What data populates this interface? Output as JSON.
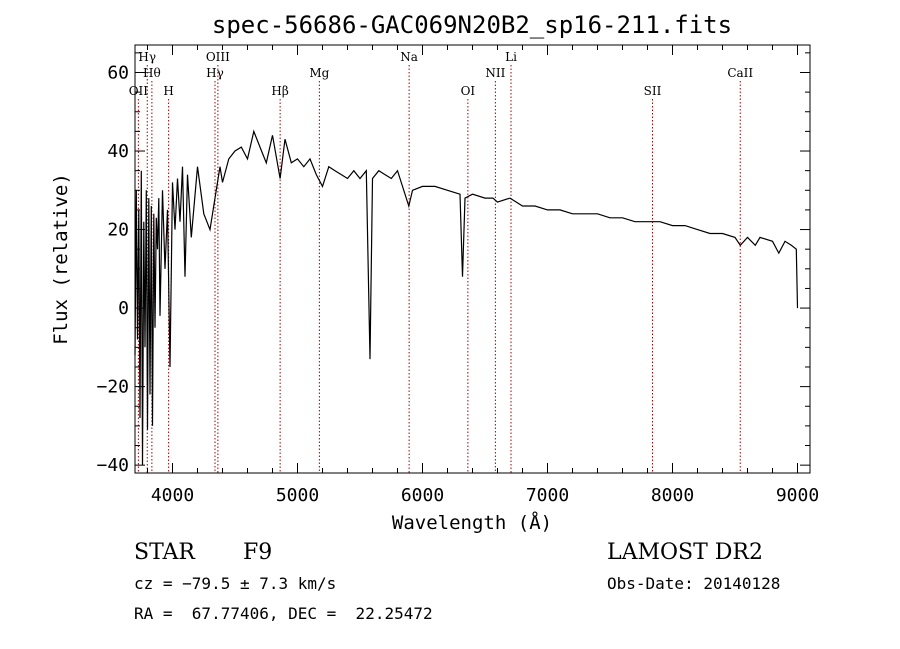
{
  "chart_data": {
    "type": "line",
    "title": "spec-56686-GAC069N20B2_sp16-211.fits",
    "xlabel": "Wavelength (Å)",
    "ylabel": "Flux (relative)",
    "xlim": [
      3700,
      9100
    ],
    "ylim": [
      -42,
      67
    ],
    "xticks": [
      4000,
      5000,
      6000,
      7000,
      8000,
      9000
    ],
    "yticks": [
      -40,
      -20,
      0,
      20,
      40,
      60
    ],
    "grid": false,
    "line_color": "#000000",
    "marker_color": "#aa0000",
    "series": [
      {
        "x": [
          3700,
          3710,
          3720,
          3730,
          3740,
          3750,
          3760,
          3770,
          3780,
          3790,
          3800,
          3810,
          3820,
          3830,
          3840,
          3850,
          3860,
          3870,
          3880,
          3890,
          3900,
          3920,
          3940,
          3960,
          3980,
          4000,
          4020,
          4040,
          4060,
          4080,
          4100,
          4120,
          4150,
          4200,
          4250,
          4300,
          4340,
          4380,
          4400,
          4450,
          4500,
          4550,
          4600,
          4650,
          4700,
          4750,
          4800,
          4861,
          4900,
          4950,
          5000,
          5050,
          5100,
          5150,
          5200,
          5250,
          5300,
          5350,
          5400,
          5450,
          5500,
          5550,
          5580,
          5600,
          5650,
          5700,
          5750,
          5800,
          5890,
          5920,
          6000,
          6100,
          6200,
          6300,
          6320,
          6340,
          6400,
          6500,
          6563,
          6600,
          6700,
          6800,
          6900,
          7000,
          7100,
          7200,
          7300,
          7400,
          7500,
          7600,
          7700,
          7800,
          7900,
          8000,
          8100,
          8200,
          8300,
          8400,
          8500,
          8542,
          8600,
          8662,
          8700,
          8800,
          8850,
          8900,
          8950,
          8990,
          9000
        ],
        "y": [
          -12,
          30,
          -8,
          25,
          -28,
          35,
          -40,
          22,
          -10,
          30,
          -31,
          28,
          -22,
          26,
          -30,
          24,
          -5,
          23,
          15,
          28,
          -2,
          30,
          10,
          25,
          -15,
          32,
          20,
          33,
          22,
          36,
          8,
          34,
          18,
          36,
          24,
          20,
          28,
          36,
          32,
          38,
          40,
          41,
          38,
          45,
          41,
          37,
          44,
          33,
          43,
          37,
          38,
          36,
          38,
          34,
          31,
          36,
          35,
          34,
          33,
          35,
          33,
          35,
          -13,
          33,
          35,
          34,
          33,
          35,
          26,
          30,
          31,
          31,
          30,
          29,
          8,
          28,
          29,
          28,
          28,
          27,
          28,
          26,
          26,
          25,
          25,
          24,
          24,
          24,
          23,
          23,
          22,
          22,
          22,
          21,
          21,
          20,
          19,
          19,
          18,
          16,
          18,
          16,
          18,
          17,
          14,
          17,
          16,
          15,
          0
        ]
      }
    ],
    "spectral_lines": [
      {
        "label": "OII",
        "x": 3727,
        "row": 3
      },
      {
        "label": "Hγ",
        "x": 3798,
        "row": 0
      },
      {
        "label": "Hθ",
        "x": 3835,
        "row": 1
      },
      {
        "label": "H",
        "x": 3969,
        "row": 3
      },
      {
        "label": "OIII",
        "x": 4363,
        "row": 0
      },
      {
        "label": "Hγ",
        "x": 4340,
        "row": 1
      },
      {
        "label": "Hβ",
        "x": 4861,
        "row": 3
      },
      {
        "label": "Mg",
        "x": 5175,
        "row": 1
      },
      {
        "label": "Na",
        "x": 5893,
        "row": 0
      },
      {
        "label": "OI",
        "x": 6363,
        "row": 3
      },
      {
        "label": "NII",
        "x": 6583,
        "row": 1
      },
      {
        "label": "Li",
        "x": 6708,
        "row": 0
      },
      {
        "label": "SII",
        "x": 7840,
        "row": 3
      },
      {
        "label": "CaII",
        "x": 8542,
        "row": 1
      }
    ]
  },
  "info": {
    "class_label": "STAR",
    "subclass_label": "F9",
    "survey_label": "LAMOST DR2",
    "cz_text": "cz = −79.5 ± 7.3 km/s",
    "obs_date_text": "Obs-Date: 20140128",
    "coords_text": "RA =  67.77406, DEC =  22.25472"
  }
}
